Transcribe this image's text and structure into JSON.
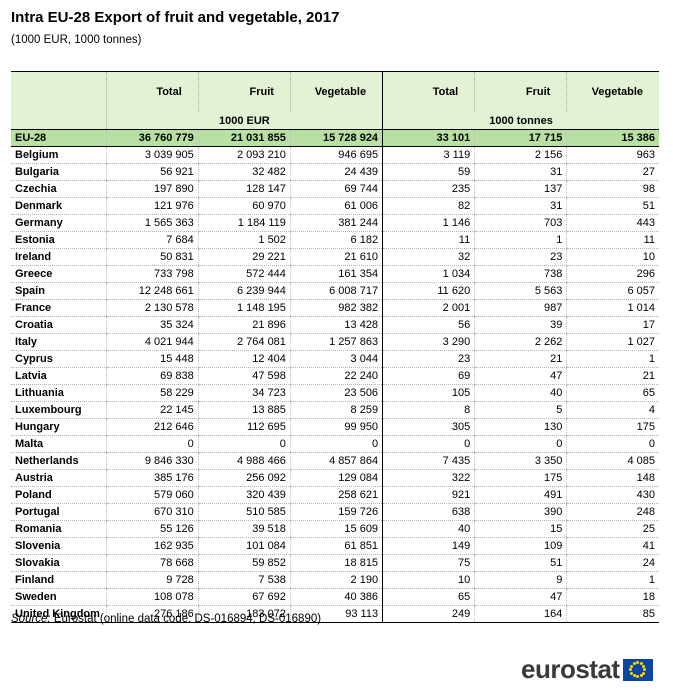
{
  "title": "Intra EU-28 Export of fruit and vegetable, 2017",
  "subtitle": "(1000 EUR, 1000 tonnes)",
  "columns": [
    "Total",
    "Fruit",
    "Vegetable",
    "Total",
    "Fruit",
    "Vegetable"
  ],
  "units": [
    "1000 EUR",
    "1000 tonnes"
  ],
  "eu_row": [
    "EU-28",
    "36 760 779",
    "21 031 855",
    "15 728 924",
    "33 101",
    "17 715",
    "15 386"
  ],
  "rows": [
    [
      "Belgium",
      "3 039 905",
      "2 093 210",
      "946 695",
      "3 119",
      "2 156",
      "963"
    ],
    [
      "Bulgaria",
      "56 921",
      "32 482",
      "24 439",
      "59",
      "31",
      "27"
    ],
    [
      "Czechia",
      "197 890",
      "128 147",
      "69 744",
      "235",
      "137",
      "98"
    ],
    [
      "Denmark",
      "121 976",
      "60 970",
      "61 006",
      "82",
      "31",
      "51"
    ],
    [
      "Germany",
      "1 565 363",
      "1 184 119",
      "381 244",
      "1 146",
      "703",
      "443"
    ],
    [
      "Estonia",
      "7 684",
      "1 502",
      "6 182",
      "11",
      "1",
      "11"
    ],
    [
      "Ireland",
      "50 831",
      "29 221",
      "21 610",
      "32",
      "23",
      "10"
    ],
    [
      "Greece",
      "733 798",
      "572 444",
      "161 354",
      "1 034",
      "738",
      "296"
    ],
    [
      "Spain",
      "12 248 661",
      "6 239 944",
      "6 008 717",
      "11 620",
      "5 563",
      "6 057"
    ],
    [
      "France",
      "2 130 578",
      "1 148 195",
      "982 382",
      "2 001",
      "987",
      "1 014"
    ],
    [
      "Croatia",
      "35 324",
      "21 896",
      "13 428",
      "56",
      "39",
      "17"
    ],
    [
      "Italy",
      "4 021 944",
      "2 764 081",
      "1 257 863",
      "3 290",
      "2 262",
      "1 027"
    ],
    [
      "Cyprus",
      "15 448",
      "12 404",
      "3 044",
      "23",
      "21",
      "1"
    ],
    [
      "Latvia",
      "69 838",
      "47 598",
      "22 240",
      "69",
      "47",
      "21"
    ],
    [
      "Lithuania",
      "58 229",
      "34 723",
      "23 506",
      "105",
      "40",
      "65"
    ],
    [
      "Luxembourg",
      "22 145",
      "13 885",
      "8 259",
      "8",
      "5",
      "4"
    ],
    [
      "Hungary",
      "212 646",
      "112 695",
      "99 950",
      "305",
      "130",
      "175"
    ],
    [
      "Malta",
      "0",
      "0",
      "0",
      "0",
      "0",
      "0"
    ],
    [
      "Netherlands",
      "9 846 330",
      "4 988 466",
      "4 857 864",
      "7 435",
      "3 350",
      "4 085"
    ],
    [
      "Austria",
      "385 176",
      "256 092",
      "129 084",
      "322",
      "175",
      "148"
    ],
    [
      "Poland",
      "579 060",
      "320 439",
      "258 621",
      "921",
      "491",
      "430"
    ],
    [
      "Portugal",
      "670 310",
      "510 585",
      "159 726",
      "638",
      "390",
      "248"
    ],
    [
      "Romania",
      "55 126",
      "39 518",
      "15 609",
      "40",
      "15",
      "25"
    ],
    [
      "Slovenia",
      "162 935",
      "101 084",
      "61 851",
      "149",
      "109",
      "41"
    ],
    [
      "Slovakia",
      "78 668",
      "59 852",
      "18 815",
      "75",
      "51",
      "24"
    ],
    [
      "Finland",
      "9 728",
      "7 538",
      "2 190",
      "10",
      "9",
      "1"
    ],
    [
      "Sweden",
      "108 078",
      "67 692",
      "40 386",
      "65",
      "47",
      "18"
    ],
    [
      "United Kingdom",
      "276 186",
      "183 072",
      "93 113",
      "249",
      "164",
      "85"
    ]
  ],
  "source_label": "Source:",
  "source_text": " Eurostat (online data code: DS-016894, DS-016890)",
  "logo_text": "eurostat",
  "colors": {
    "header_bg": "#e3f2d5",
    "eu_row_bg": "#b9e0a3",
    "flag_blue": "#0e47a1",
    "flag_star": "#ffd600"
  }
}
